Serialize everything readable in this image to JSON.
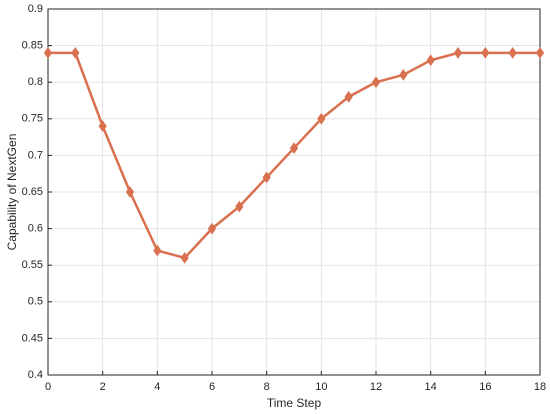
{
  "chart_data": {
    "type": "line",
    "xlabel": "Time Step",
    "ylabel": "Capability of NextGen",
    "x": [
      0,
      1,
      2,
      3,
      4,
      5,
      6,
      7,
      8,
      9,
      10,
      11,
      12,
      13,
      14,
      15,
      16,
      17,
      18
    ],
    "values": [
      0.84,
      0.84,
      0.74,
      0.65,
      0.57,
      0.56,
      0.6,
      0.63,
      0.67,
      0.71,
      0.75,
      0.78,
      0.8,
      0.81,
      0.83,
      0.84,
      0.84,
      0.84,
      0.84
    ],
    "color": "#d9704f",
    "xlim": [
      0,
      18
    ],
    "xticks": [
      0,
      2,
      4,
      6,
      8,
      10,
      12,
      14,
      16,
      18
    ],
    "ylim": [
      0.4,
      0.9
    ],
    "yticks": [
      0.4,
      0.45,
      0.5,
      0.55,
      0.6,
      0.65,
      0.7,
      0.75,
      0.8,
      0.85,
      0.9
    ],
    "grid": true
  }
}
